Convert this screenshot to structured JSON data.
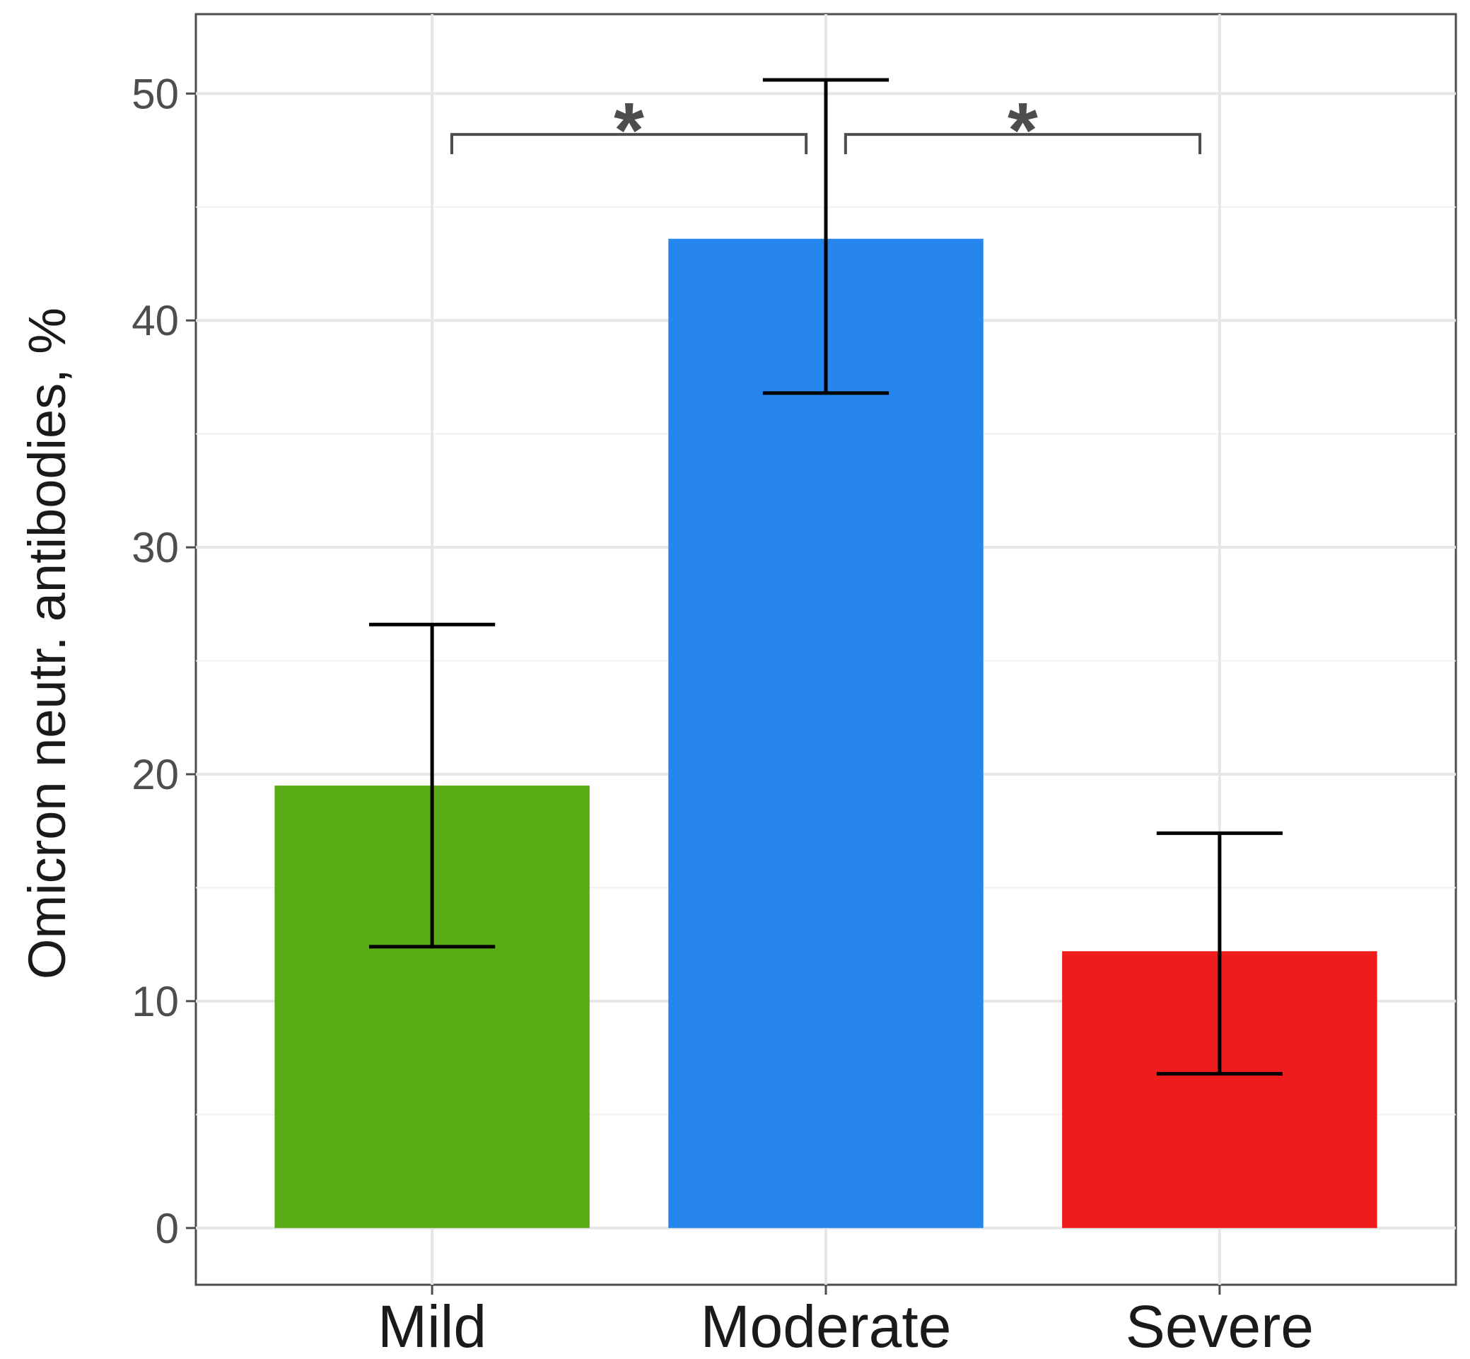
{
  "chart_data": {
    "type": "bar",
    "title": "",
    "xlabel": "",
    "ylabel": "Omicron neutr. antibodies, %",
    "ylim": [
      -2.5,
      53.5
    ],
    "yticks": [
      0,
      10,
      20,
      30,
      40,
      50
    ],
    "ytick_labels": [
      "0",
      "10",
      "20",
      "30",
      "40",
      "50"
    ],
    "grid": true,
    "categories": [
      "Mild",
      "Moderate",
      "Severe"
    ],
    "values": [
      19.5,
      43.6,
      12.2
    ],
    "error_low": [
      12.4,
      36.8,
      6.8
    ],
    "error_high": [
      26.6,
      50.6,
      17.4
    ],
    "colors": [
      "#5aac14",
      "#2786ee",
      "#ee1c1c"
    ],
    "significance": [
      {
        "from": "Mild",
        "to": "Moderate",
        "label": "*",
        "level": 48.2
      },
      {
        "from": "Moderate",
        "to": "Severe",
        "label": "*",
        "level": 48.2
      }
    ]
  }
}
